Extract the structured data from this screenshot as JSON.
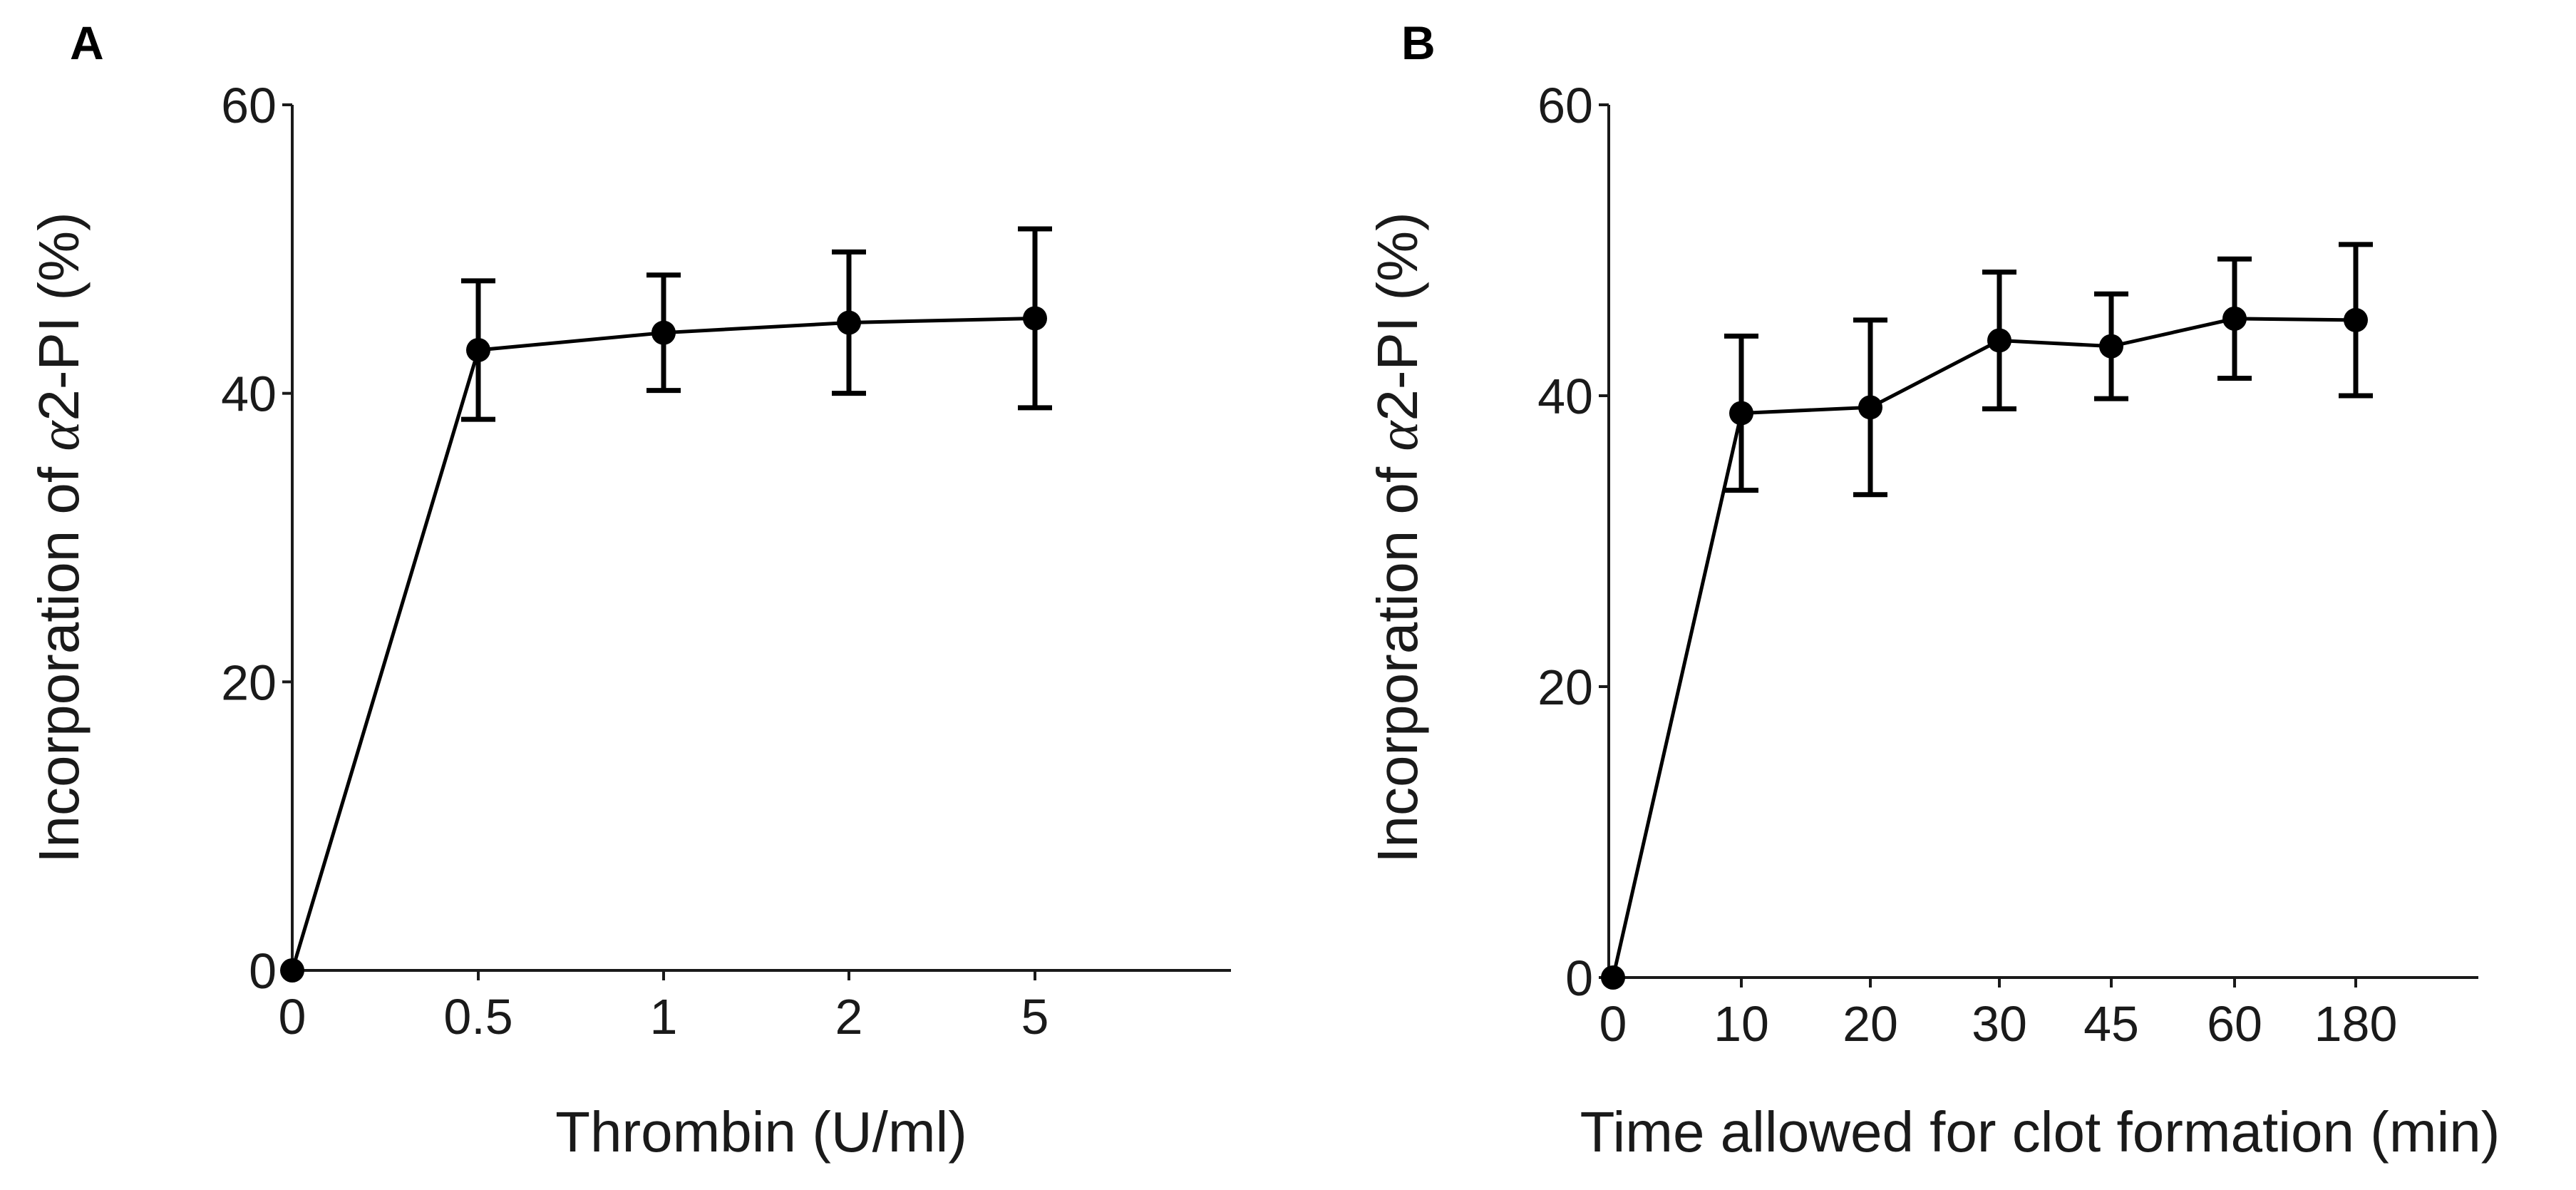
{
  "chart_data": [
    {
      "panel": "A",
      "type": "line",
      "categories": [
        "0",
        "0.5",
        "1",
        "2",
        "5"
      ],
      "values": [
        0,
        43,
        44.2,
        44.9,
        45.2
      ],
      "error": [
        0,
        4.8,
        4.0,
        4.9,
        6.2
      ],
      "xlabel": "Thrombin (U/ml)",
      "ylabel_prefix": "Incorporation of",
      "ylabel_alpha": "α",
      "ylabel_suffix": "2-PI (%)",
      "ylim": [
        0,
        60
      ],
      "yticks": [
        "0",
        "20",
        "40",
        "60"
      ],
      "grid": false
    },
    {
      "panel": "B",
      "type": "line",
      "categories": [
        "0",
        "10",
        "20",
        "30",
        "45",
        "60",
        "180"
      ],
      "values": [
        0,
        38.8,
        39.2,
        43.8,
        43.4,
        45.3,
        45.2
      ],
      "error": [
        0,
        5.3,
        6.0,
        4.7,
        3.6,
        4.1,
        5.2
      ],
      "xlabel": "Time allowed for clot formation (min)",
      "ylabel_prefix": "Incorporation of",
      "ylabel_alpha": "α",
      "ylabel_suffix": "2-PI (%)",
      "ylim": [
        0,
        60
      ],
      "yticks": [
        "0",
        "20",
        "40",
        "60"
      ],
      "grid": false
    }
  ]
}
